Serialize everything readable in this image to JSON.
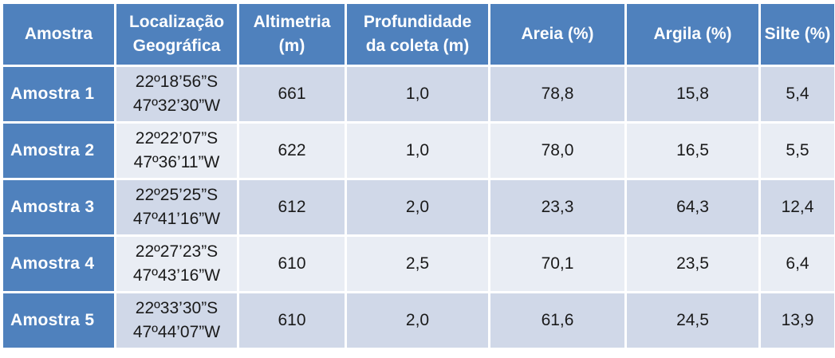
{
  "table": {
    "headers": [
      [
        "Amostra"
      ],
      [
        "Localização",
        "Geográfica"
      ],
      [
        "Altimetria",
        "(m)"
      ],
      [
        "Profundidade",
        "da coleta (m)"
      ],
      [
        "Areia (%)"
      ],
      [
        "Argila (%)"
      ],
      [
        "Silte (%)"
      ]
    ],
    "rows": [
      {
        "amostra": "Amostra 1",
        "lat": "22º18’56”S",
        "lon": "47º32’30”W",
        "altimetria": "661",
        "profundidade": "1,0",
        "areia": "78,8",
        "argila": "15,8",
        "silte": "5,4"
      },
      {
        "amostra": "Amostra 2",
        "lat": "22º22’07”S",
        "lon": "47º36’11”W",
        "altimetria": "622",
        "profundidade": "1,0",
        "areia": "78,0",
        "argila": "16,5",
        "silte": "5,5"
      },
      {
        "amostra": "Amostra 3",
        "lat": "22º25’25”S",
        "lon": "47º41’16”W",
        "altimetria": "612",
        "profundidade": "2,0",
        "areia": "23,3",
        "argila": "64,3",
        "silte": "12,4"
      },
      {
        "amostra": "Amostra 4",
        "lat": "22º27’23”S",
        "lon": "47º43’16”W",
        "altimetria": "610",
        "profundidade": "2,5",
        "areia": "70,1",
        "argila": "23,5",
        "silte": "6,4"
      },
      {
        "amostra": "Amostra 5",
        "lat": "22º33’30”S",
        "lon": "47º44’07”W",
        "altimetria": "610",
        "profundidade": "2,0",
        "areia": "61,6",
        "argila": "24,5",
        "silte": "13,9"
      }
    ]
  },
  "colors": {
    "header_bg": "#4f81bd",
    "header_text": "#ffffff",
    "row_odd_bg": "#d0d8e8",
    "row_even_bg": "#e9edf4",
    "cell_text": "#1a1a1a"
  }
}
